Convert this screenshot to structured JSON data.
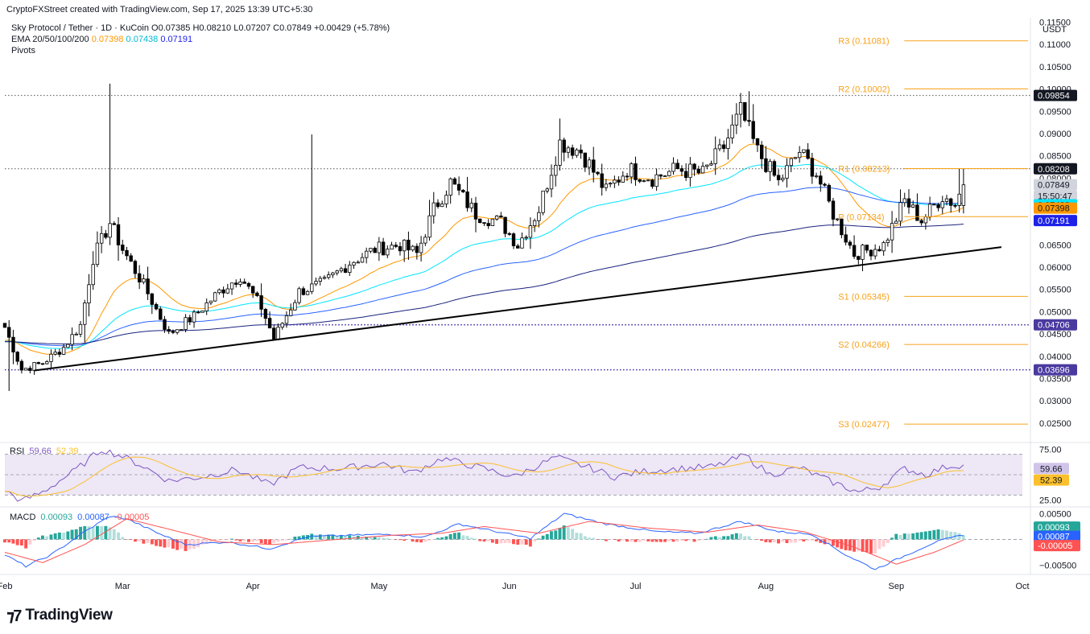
{
  "header": {
    "credit": "CryptoFXStreet created with TradingView.com, Sep 17, 2025 13:39 UTC+5:30",
    "symbol": "Sky Protocol / Tether · 1D · KuCoin",
    "ohlc": {
      "o_label": "O",
      "o": "0.07385",
      "h_label": "H",
      "h": "0.08210",
      "l_label": "L",
      "l": "0.07207",
      "c_label": "C",
      "c": "0.07849",
      "change": "+0.00429 (+5.78%)"
    },
    "ema_label": "EMA 20/50/100/200",
    "ema_values": [
      "0.07398",
      "0.07438",
      "0.07191"
    ],
    "pivots_label": "Pivots"
  },
  "currency": "USDT",
  "colors": {
    "up": "#ffffff",
    "down": "#000000",
    "candle_border": "#000000",
    "ema20": "#ff9800",
    "ema50": "#00e5ff",
    "ema100": "#2962ff",
    "ema200": "#1a237e",
    "pivot": "#f7a21b",
    "trend": "#000000",
    "dotted_level": "#3f2fa8",
    "rsi": "#7e57c2",
    "rsi_ma": "#fbc02d",
    "rsi_band": "#ede7f6",
    "macd": "#2962ff",
    "signal": "#ff5252",
    "hist_up_strong": "#26a69a",
    "hist_up_weak": "#b2dfdb",
    "hist_down_strong": "#ff5252",
    "hist_down_weak": "#ffcdd2"
  },
  "chart_data": [
    {
      "type": "candlestick",
      "interval": "1D",
      "x_range": [
        "2025-02-01",
        "2025-10-01"
      ],
      "x_tick_labels": [
        "Feb",
        "Mar",
        "Apr",
        "May",
        "Jun",
        "Jul",
        "Aug",
        "Sep",
        "Oct"
      ],
      "y_range": [
        0.021,
        0.116
      ],
      "y_tick_labels": [
        "0.02500",
        "0.03000",
        "0.03500",
        "0.04000",
        "0.04500",
        "0.05000",
        "0.05500",
        "0.06000",
        "0.06500",
        "0.07000",
        "0.07500",
        "0.08000",
        "0.08500",
        "0.09000",
        "0.09500",
        "0.10000",
        "0.10500",
        "0.11000",
        "0.11500"
      ],
      "anchors": [
        [
          "2025-02-01",
          0.0465
        ],
        [
          "2025-02-05",
          0.037
        ],
        [
          "2025-02-10",
          0.0385
        ],
        [
          "2025-02-15",
          0.042
        ],
        [
          "2025-02-19",
          0.047
        ],
        [
          "2025-02-22",
          0.062
        ],
        [
          "2025-02-26",
          0.07
        ],
        [
          "2025-03-01",
          0.064
        ],
        [
          "2025-03-06",
          0.056
        ],
        [
          "2025-03-12",
          0.045
        ],
        [
          "2025-03-18",
          0.049
        ],
        [
          "2025-03-24",
          0.0545
        ],
        [
          "2025-03-29",
          0.058
        ],
        [
          "2025-04-03",
          0.051
        ],
        [
          "2025-04-06",
          0.044
        ],
        [
          "2025-04-12",
          0.0545
        ],
        [
          "2025-04-18",
          0.0565
        ],
        [
          "2025-04-24",
          0.061
        ],
        [
          "2025-04-30",
          0.064
        ],
        [
          "2025-05-06",
          0.065
        ],
        [
          "2025-05-10",
          0.063
        ],
        [
          "2025-05-14",
          0.073
        ],
        [
          "2025-05-18",
          0.079
        ],
        [
          "2025-05-24",
          0.072
        ],
        [
          "2025-05-30",
          0.07
        ],
        [
          "2025-06-03",
          0.065
        ],
        [
          "2025-06-08",
          0.073
        ],
        [
          "2025-06-13",
          0.088
        ],
        [
          "2025-06-18",
          0.086
        ],
        [
          "2025-06-24",
          0.077
        ],
        [
          "2025-06-29",
          0.082
        ],
        [
          "2025-07-05",
          0.08
        ],
        [
          "2025-07-11",
          0.082
        ],
        [
          "2025-07-17",
          0.081
        ],
        [
          "2025-07-22",
          0.087
        ],
        [
          "2025-07-26",
          0.095
        ],
        [
          "2025-07-30",
          0.086
        ],
        [
          "2025-08-04",
          0.079
        ],
        [
          "2025-08-09",
          0.086
        ],
        [
          "2025-08-13",
          0.081
        ],
        [
          "2025-08-17",
          0.072
        ],
        [
          "2025-08-22",
          0.063
        ],
        [
          "2025-08-26",
          0.064
        ],
        [
          "2025-08-29",
          0.065
        ],
        [
          "2025-09-03",
          0.075
        ],
        [
          "2025-09-07",
          0.0705
        ],
        [
          "2025-09-12",
          0.076
        ],
        [
          "2025-09-15",
          0.0742
        ],
        [
          "2025-09-17",
          0.0785
        ]
      ],
      "spikes": [
        [
          "2025-02-26",
          0.1012
        ],
        [
          "2025-04-15",
          0.0898
        ],
        [
          "2025-07-28",
          0.0995
        ],
        [
          "2025-09-16",
          0.0821
        ],
        [
          "2025-02-02",
          0.0322
        ]
      ],
      "last": {
        "o": 0.07385,
        "h": 0.0821,
        "l": 0.07207,
        "c": 0.07849
      },
      "price_badges": [
        {
          "value": "0.09854",
          "bg": "#131722",
          "fg": "#ffffff"
        },
        {
          "value": "0.08208",
          "bg": "#131722",
          "fg": "#ffffff"
        },
        {
          "value": "0.07849",
          "bg": "#d1d4dc",
          "fg": "#131722"
        },
        {
          "value": "15:50:47",
          "bg": "#d1d4dc",
          "fg": "#131722"
        },
        {
          "value": "0.07438",
          "bg": "#00e5ff",
          "fg": "#131722"
        },
        {
          "value": "0.07398",
          "bg": "#ff9800",
          "fg": "#131722"
        },
        {
          "value": "0.07191",
          "bg": "#1e22e8",
          "fg": "#ffffff"
        },
        {
          "value": "0.04706",
          "bg": "#4a3aa0",
          "fg": "#ffffff"
        },
        {
          "value": "0.03696",
          "bg": "#4a3aa0",
          "fg": "#ffffff"
        }
      ],
      "dotted_levels": [
        {
          "value": 0.09854,
          "style": "gray",
          "from": "2025-02-01"
        },
        {
          "value": 0.08208,
          "style": "gray",
          "from": "2025-02-01"
        },
        {
          "value": 0.04706,
          "style": "purple",
          "from": "2025-04-06"
        },
        {
          "value": 0.03696,
          "style": "purple",
          "from": "2025-02-01"
        }
      ],
      "pivots": [
        {
          "label": "R3 (0.11081)",
          "value": 0.11081
        },
        {
          "label": "R2 (0.10002)",
          "value": 0.10002
        },
        {
          "label": "R1 (0.08213)",
          "value": 0.08213
        },
        {
          "label": "P (0.07134)",
          "value": 0.07134
        },
        {
          "label": "S1 (0.05345)",
          "value": 0.05345
        },
        {
          "label": "S2 (0.04266)",
          "value": 0.04266
        },
        {
          "label": "S3 (0.02477)",
          "value": 0.02477
        }
      ],
      "pivot_start": "2025-09-01",
      "trendline": [
        [
          "2025-02-08",
          0.0368
        ],
        [
          "2025-09-26",
          0.0645
        ]
      ]
    },
    {
      "type": "line",
      "name": "RSI",
      "label": "RSI",
      "values_shown": [
        "59.66",
        "52.39"
      ],
      "band": [
        30,
        70
      ],
      "mid": 50,
      "y_range": [
        20,
        80
      ],
      "y_tick_labels": [
        "75.00",
        "25.00"
      ],
      "anchors": [
        [
          "2025-02-01",
          35
        ],
        [
          "2025-02-05",
          24
        ],
        [
          "2025-02-10",
          33
        ],
        [
          "2025-02-18",
          55
        ],
        [
          "2025-02-24",
          75
        ],
        [
          "2025-03-01",
          68
        ],
        [
          "2025-03-06",
          58
        ],
        [
          "2025-03-12",
          44
        ],
        [
          "2025-03-20",
          48
        ],
        [
          "2025-03-28",
          55
        ],
        [
          "2025-04-05",
          40
        ],
        [
          "2025-04-12",
          57
        ],
        [
          "2025-04-22",
          56
        ],
        [
          "2025-05-02",
          61
        ],
        [
          "2025-05-09",
          52
        ],
        [
          "2025-05-16",
          66
        ],
        [
          "2025-05-24",
          58
        ],
        [
          "2025-06-02",
          48
        ],
        [
          "2025-06-12",
          67
        ],
        [
          "2025-06-20",
          57
        ],
        [
          "2025-06-26",
          48
        ],
        [
          "2025-07-04",
          54
        ],
        [
          "2025-07-12",
          56
        ],
        [
          "2025-07-20",
          58
        ],
        [
          "2025-07-27",
          69
        ],
        [
          "2025-08-02",
          50
        ],
        [
          "2025-08-09",
          57
        ],
        [
          "2025-08-16",
          44
        ],
        [
          "2025-08-23",
          33
        ],
        [
          "2025-08-28",
          38
        ],
        [
          "2025-09-03",
          56
        ],
        [
          "2025-09-08",
          50
        ],
        [
          "2025-09-13",
          58
        ],
        [
          "2025-09-17",
          60
        ]
      ]
    },
    {
      "type": "line",
      "name": "MACD",
      "label": "MACD",
      "values_shown": [
        "0.00093",
        "0.00087",
        "-0.00005"
      ],
      "y_range": [
        -0.0068,
        0.006
      ],
      "y_tick_labels": [
        "0.00500",
        "−0.00500"
      ],
      "macd_anchors": [
        [
          "2025-02-01",
          -0.003
        ],
        [
          "2025-02-06",
          -0.0052
        ],
        [
          "2025-02-12",
          -0.003
        ],
        [
          "2025-02-20",
          0.0015
        ],
        [
          "2025-02-26",
          0.0045
        ],
        [
          "2025-03-02",
          0.004
        ],
        [
          "2025-03-10",
          0.001
        ],
        [
          "2025-03-16",
          -0.001
        ],
        [
          "2025-03-26",
          -0.0005
        ],
        [
          "2025-04-05",
          -0.0018
        ],
        [
          "2025-04-14",
          0.0005
        ],
        [
          "2025-04-24",
          0.0008
        ],
        [
          "2025-05-04",
          0.001
        ],
        [
          "2025-05-12",
          0.0005
        ],
        [
          "2025-05-20",
          0.003
        ],
        [
          "2025-06-01",
          0.001
        ],
        [
          "2025-06-06",
          0.0002
        ],
        [
          "2025-06-14",
          0.005
        ],
        [
          "2025-06-24",
          0.003
        ],
        [
          "2025-07-06",
          0.0015
        ],
        [
          "2025-07-16",
          0.0012
        ],
        [
          "2025-07-26",
          0.0035
        ],
        [
          "2025-08-04",
          0.0015
        ],
        [
          "2025-08-12",
          0.001
        ],
        [
          "2025-08-20",
          -0.003
        ],
        [
          "2025-08-27",
          -0.0058
        ],
        [
          "2025-09-04",
          -0.0028
        ],
        [
          "2025-09-10",
          -0.0006
        ],
        [
          "2025-09-17",
          0.0009
        ]
      ],
      "signal_anchors": [
        [
          "2025-02-01",
          -0.0025
        ],
        [
          "2025-02-10",
          -0.0045
        ],
        [
          "2025-02-20",
          -0.001
        ],
        [
          "2025-03-02",
          0.004
        ],
        [
          "2025-03-12",
          0.002
        ],
        [
          "2025-03-24",
          -0.0005
        ],
        [
          "2025-04-06",
          -0.001
        ],
        [
          "2025-04-18",
          -0.0002
        ],
        [
          "2025-05-04",
          0.0008
        ],
        [
          "2025-05-16",
          0.0012
        ],
        [
          "2025-05-26",
          0.0025
        ],
        [
          "2025-06-08",
          0.0012
        ],
        [
          "2025-06-20",
          0.0035
        ],
        [
          "2025-07-04",
          0.0022
        ],
        [
          "2025-07-18",
          0.0014
        ],
        [
          "2025-07-30",
          0.0028
        ],
        [
          "2025-08-10",
          0.0015
        ],
        [
          "2025-08-22",
          -0.0015
        ],
        [
          "2025-09-01",
          -0.0048
        ],
        [
          "2025-09-10",
          -0.0025
        ],
        [
          "2025-09-17",
          -0.0001
        ]
      ]
    }
  ]
}
